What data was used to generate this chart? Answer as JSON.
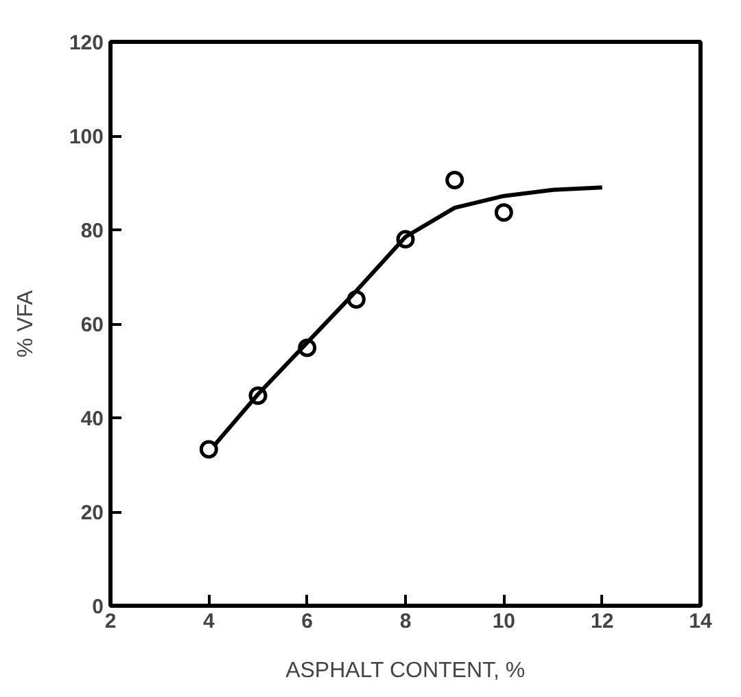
{
  "chart_data": {
    "type": "scatter",
    "xlabel": "ASPHALT CONTENT, %",
    "ylabel": "% VFA",
    "xlim": [
      2,
      14
    ],
    "ylim": [
      0,
      120
    ],
    "xticks": [
      2,
      4,
      6,
      8,
      10,
      12,
      14
    ],
    "yticks": [
      0,
      20,
      40,
      60,
      80,
      100,
      120
    ],
    "grid": false,
    "marker": "circle",
    "series": [
      {
        "color": "#000000",
        "x": [
          4,
          5,
          6,
          7,
          8,
          9,
          10
        ],
        "values": [
          33.3,
          44.7,
          54.9,
          65.2,
          78,
          90.6,
          83.7
        ]
      },
      {
        "type": "line",
        "color": "#000000",
        "line_style": "solid",
        "marker": "none",
        "x": [
          4.1,
          5,
          6,
          7,
          8,
          9,
          10,
          11,
          12
        ],
        "values": [
          34,
          45,
          56,
          67,
          78.5,
          84.7,
          87.2,
          88.5,
          89
        ]
      }
    ]
  }
}
